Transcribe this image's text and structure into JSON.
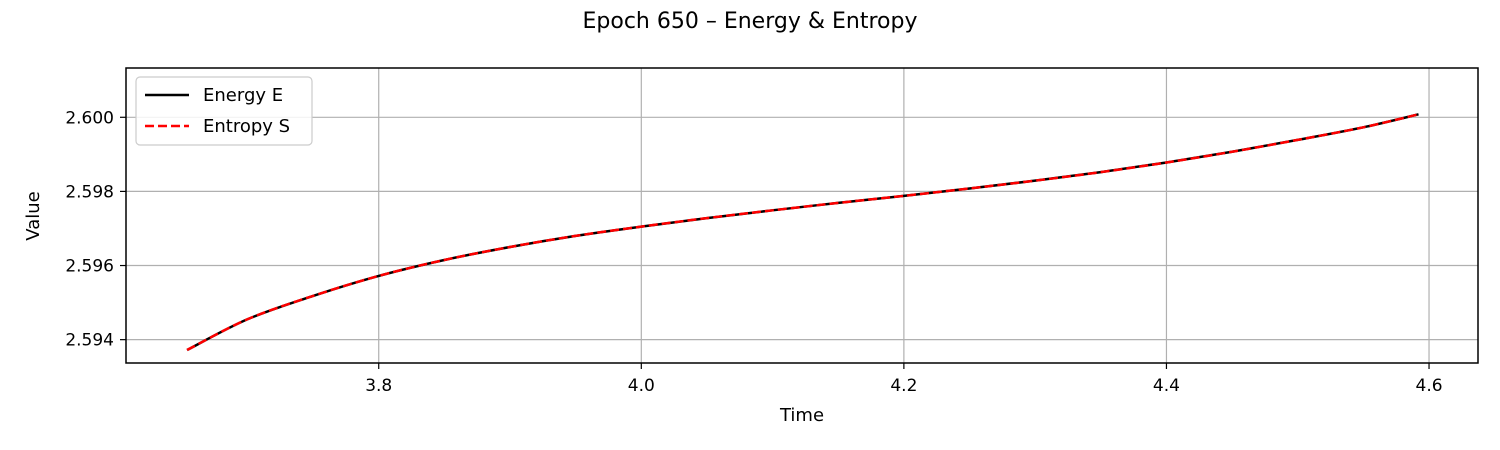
{
  "chart_data": {
    "type": "line",
    "title": "Epoch 650 – Energy & Entropy",
    "xlabel": "Time",
    "ylabel": "Value",
    "xlim": [
      3.6075,
      4.6373
    ],
    "ylim": [
      2.59337,
      2.60133
    ],
    "xticks": [
      3.8,
      4.0,
      4.2,
      4.4,
      4.6
    ],
    "xtick_labels": [
      "3.8",
      "4.0",
      "4.2",
      "4.4",
      "4.6"
    ],
    "yticks": [
      2.594,
      2.596,
      2.598,
      2.6
    ],
    "ytick_labels": [
      "2.594",
      "2.596",
      "2.598",
      "2.600"
    ],
    "grid": true,
    "legend_position": "top-left",
    "series": [
      {
        "name": "Energy E",
        "color": "#000000",
        "style": "solid",
        "x": [
          3.654,
          3.7,
          3.75,
          3.8,
          3.85,
          3.9,
          3.95,
          4.0,
          4.05,
          4.1,
          4.15,
          4.2,
          4.25,
          4.3,
          4.35,
          4.4,
          4.45,
          4.5,
          4.55,
          4.592
        ],
        "y": [
          2.59372,
          2.59455,
          2.59518,
          2.59572,
          2.59615,
          2.5965,
          2.5968,
          2.59705,
          2.59728,
          2.59749,
          2.59769,
          2.59788,
          2.59808,
          2.59829,
          2.59852,
          2.59878,
          2.59907,
          2.59939,
          2.59973,
          2.60008
        ]
      },
      {
        "name": "Entropy S",
        "color": "#ff0000",
        "style": "dashed",
        "x": [
          3.654,
          3.7,
          3.75,
          3.8,
          3.85,
          3.9,
          3.95,
          4.0,
          4.05,
          4.1,
          4.15,
          4.2,
          4.25,
          4.3,
          4.35,
          4.4,
          4.45,
          4.5,
          4.55,
          4.592
        ],
        "y": [
          2.59372,
          2.59455,
          2.59518,
          2.59572,
          2.59615,
          2.5965,
          2.5968,
          2.59705,
          2.59728,
          2.59749,
          2.59769,
          2.59788,
          2.59808,
          2.59829,
          2.59852,
          2.59878,
          2.59907,
          2.59939,
          2.59973,
          2.60008
        ]
      }
    ]
  }
}
